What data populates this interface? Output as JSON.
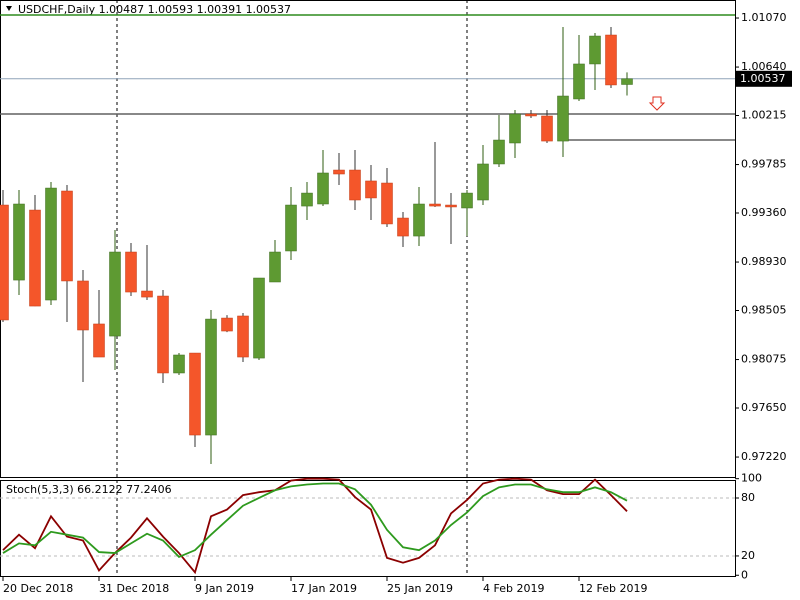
{
  "chart_data": [
    {
      "type": "candlestick",
      "title": "USDCHF,Daily  1.00487 1.00593 1.00391 1.00537",
      "categories": [
        "20 Dec 2018",
        null,
        null,
        null,
        null,
        null,
        "31 Dec 2018",
        null,
        null,
        null,
        null,
        null,
        "9 Jan 2019",
        null,
        null,
        null,
        null,
        null,
        "17 Jan 2019",
        null,
        null,
        null,
        null,
        null,
        "25 Jan 2019",
        null,
        null,
        null,
        null,
        null,
        "4 Feb 2019",
        null,
        null,
        null,
        null,
        null,
        "12 Feb 2019",
        null,
        null,
        null
      ],
      "open": [
        0.9943,
        0.98772,
        0.99386,
        0.98597,
        0.99553,
        0.98764,
        0.98387,
        0.98281,
        0.99018,
        0.98676,
        0.98632,
        0.97957,
        0.98132,
        0.97413,
        0.98439,
        0.98457,
        0.98088,
        0.98755,
        0.99027,
        0.99421,
        0.99439,
        0.99737,
        0.99737,
        0.99641,
        0.99623,
        0.99316,
        0.99158,
        0.99439,
        0.9943,
        0.99404,
        0.99474,
        0.9979,
        0.99974,
        1.00228,
        1.00211,
        0.99991,
        1.0036,
        1.00667,
        1.00921,
        1.00487
      ],
      "high": [
        0.99562,
        0.99562,
        0.99518,
        0.99632,
        0.99606,
        0.9886,
        0.98685,
        0.99211,
        0.99097,
        0.99079,
        0.98685,
        0.98132,
        0.98132,
        0.98509,
        0.98465,
        0.98483,
        0.9879,
        0.99123,
        0.99588,
        0.99632,
        0.99913,
        0.99886,
        0.99913,
        0.99781,
        0.99755,
        0.99369,
        0.99588,
        0.99983,
        0.99535,
        0.99562,
        0.99956,
        1.00219,
        1.00263,
        1.00263,
        1.00263,
        1.00991,
        1.00921,
        1.00939,
        1.00991,
        1.00593
      ],
      "low": [
        0.98404,
        0.98641,
        0.98544,
        0.98553,
        0.98404,
        0.97878,
        0.98097,
        0.97983,
        0.98632,
        0.98597,
        0.97869,
        0.97939,
        0.97308,
        0.97159,
        0.98316,
        0.98053,
        0.98071,
        0.98755,
        0.98948,
        0.99299,
        0.99421,
        0.99606,
        0.99386,
        0.99299,
        0.99237,
        0.99062,
        0.99071,
        0.99413,
        0.99088,
        0.99158,
        0.9943,
        0.99763,
        0.99842,
        1.00193,
        0.99974,
        0.99851,
        1.00342,
        1.00439,
        1.00456,
        1.00391
      ],
      "close": [
        0.98422,
        0.99439,
        0.98544,
        0.99579,
        0.98764,
        0.98334,
        0.98097,
        0.99018,
        0.98667,
        0.98623,
        0.97957,
        0.98115,
        0.97413,
        0.9843,
        0.98325,
        0.98097,
        0.9879,
        0.99018,
        0.9943,
        0.99535,
        0.99711,
        0.99702,
        0.99474,
        0.99492,
        0.99264,
        0.99158,
        0.99439,
        0.99421,
        0.99413,
        0.99535,
        0.9979,
        1.0,
        1.00228,
        1.00211,
        0.99991,
        1.00386,
        1.00667,
        1.00912,
        1.00483,
        1.00537
      ],
      "up_color": "#5e9a32",
      "down_color": "#f4562a",
      "ylim": [
        0.97045,
        1.01228
      ],
      "yticks": [
        {
          "value": 1.0107,
          "label": "1.01070"
        },
        {
          "value": 1.0064,
          "label": "1.00640"
        },
        1.00215,
        0.99785,
        {
          "value": 0.9936,
          "label": "0.99360"
        },
        {
          "value": 0.9893,
          "label": "0.98930"
        },
        0.98505,
        0.98075,
        {
          "value": 0.9765,
          "label": "0.97650"
        },
        {
          "value": 0.9722,
          "label": "0.97220"
        }
      ],
      "lines": [
        {
          "value": 1.01097,
          "color": "#2e8b1e"
        },
        {
          "value": 1.00228,
          "color": "#606060"
        },
        {
          "value": 1.0,
          "color": "#606060",
          "start": 35
        }
      ],
      "price_line": 1.00537
    },
    {
      "type": "line",
      "title": "Stoch(5,3,3) 66.2122 77.2406",
      "series": [
        {
          "color": "#8b0000",
          "values": [
            26,
            42,
            28,
            61,
            40,
            36,
            5,
            23,
            39,
            59,
            40,
            23,
            3,
            61,
            68,
            83,
            86,
            88,
            98,
            100,
            100,
            99,
            81,
            68,
            18,
            13,
            18,
            31,
            64,
            78,
            95,
            99,
            100,
            99,
            88,
            84,
            84,
            99,
            83,
            66.2122
          ]
        },
        {
          "color": "#2e9a1e",
          "values": [
            23,
            33,
            31,
            45,
            42,
            39,
            24,
            23,
            33,
            43,
            36,
            19,
            26,
            42,
            57,
            72,
            80,
            88,
            92,
            94,
            95,
            95,
            89,
            73,
            47,
            29,
            26,
            36,
            52,
            65,
            82,
            91,
            94,
            94,
            89,
            86,
            86,
            91,
            86,
            77.2406
          ]
        }
      ],
      "ylim": [
        -1.8,
        100.7
      ],
      "yticks": [
        100,
        80,
        20,
        0
      ],
      "levels": [
        80,
        20
      ]
    }
  ]
}
